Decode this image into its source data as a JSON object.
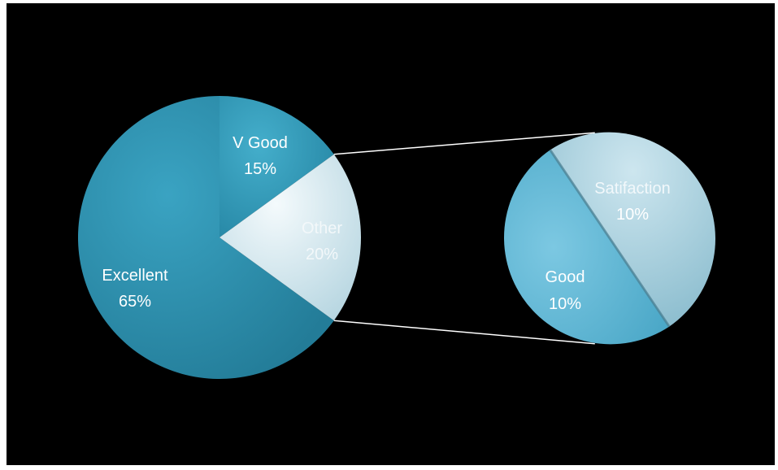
{
  "chart_data": {
    "type": "bar-of-pie",
    "main_pie": {
      "slices": [
        {
          "label": "Excellent",
          "value": 65,
          "value_label": "65%",
          "color": "#2b8fae"
        },
        {
          "label": "V Good",
          "value": 15,
          "value_label": "15%",
          "color": "#2f97b6"
        },
        {
          "label": "Other",
          "value": 20,
          "value_label": "20%",
          "color": "#d3e8ef"
        }
      ]
    },
    "secondary_pie": {
      "slices": [
        {
          "label": "Satifaction",
          "value": 10,
          "value_label": "10%",
          "color": "#a6d0df"
        },
        {
          "label": "Good",
          "value": 10,
          "value_label": "10%",
          "color": "#64b9d6"
        }
      ]
    },
    "legend": "none",
    "background": "#000000"
  }
}
